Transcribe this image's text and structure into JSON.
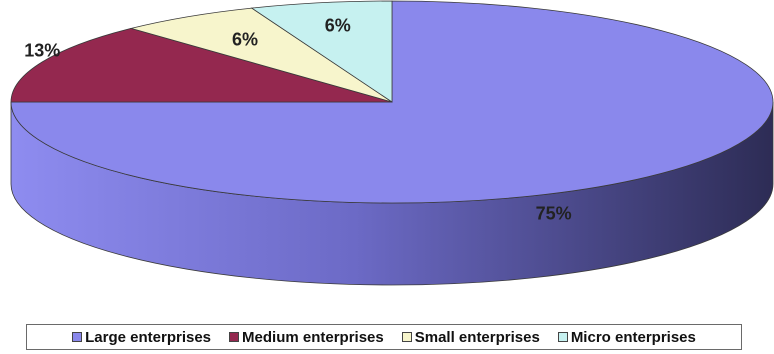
{
  "chart_data": {
    "type": "pie",
    "style": "3d",
    "title": "",
    "categories": [
      "Large enterprises",
      "Medium enterprises",
      "Small enterprises",
      "Micro enterprises"
    ],
    "values": [
      75,
      13,
      6,
      6
    ],
    "labels": [
      "75%",
      "13%",
      "6%",
      "6%"
    ],
    "colors": [
      "#8a88ec",
      "#94284f",
      "#f7f5cc",
      "#c6f1f0"
    ],
    "legend_placement": "bottom"
  },
  "legend": {
    "items": [
      {
        "label": "Large enterprises",
        "color": "#8a88ec"
      },
      {
        "label": "Medium enterprises",
        "color": "#94284f"
      },
      {
        "label": "Small enterprises",
        "color": "#f7f5cc"
      },
      {
        "label": "Micro enterprises",
        "color": "#c6f1f0"
      }
    ]
  }
}
